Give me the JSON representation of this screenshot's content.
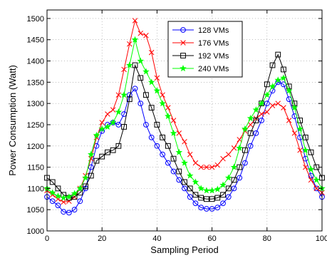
{
  "chart_data": {
    "type": "line",
    "title": "",
    "xlabel": "Sampling Period",
    "ylabel": "Power Consumption (Watt)",
    "xlim": [
      0,
      100
    ],
    "ylim": [
      1000,
      1520
    ],
    "xticks": [
      0,
      20,
      40,
      60,
      80,
      100
    ],
    "yticks": [
      1000,
      1050,
      1100,
      1150,
      1200,
      1250,
      1300,
      1350,
      1400,
      1450,
      1500
    ],
    "grid": true,
    "legend_position": "top-right",
    "x": [
      0,
      2,
      4,
      6,
      8,
      10,
      12,
      14,
      16,
      18,
      20,
      22,
      24,
      26,
      28,
      30,
      32,
      34,
      36,
      38,
      40,
      42,
      44,
      46,
      48,
      50,
      52,
      54,
      56,
      58,
      60,
      62,
      64,
      66,
      68,
      70,
      72,
      74,
      76,
      78,
      80,
      82,
      84,
      86,
      88,
      90,
      92,
      94,
      96,
      98,
      100
    ],
    "series": [
      {
        "name": "128 VMs",
        "color": "#0000ff",
        "marker": "circle",
        "values": [
          1080,
          1070,
          1060,
          1045,
          1043,
          1050,
          1070,
          1100,
          1150,
          1200,
          1235,
          1250,
          1255,
          1250,
          1275,
          1320,
          1335,
          1300,
          1250,
          1220,
          1200,
          1180,
          1160,
          1140,
          1120,
          1100,
          1080,
          1065,
          1055,
          1052,
          1052,
          1055,
          1065,
          1080,
          1100,
          1125,
          1160,
          1200,
          1230,
          1260,
          1300,
          1330,
          1350,
          1345,
          1310,
          1270,
          1220,
          1170,
          1130,
          1100,
          1080
        ]
      },
      {
        "name": "176 VMs",
        "color": "#ff0000",
        "marker": "x",
        "values": [
          1095,
          1085,
          1075,
          1068,
          1070,
          1080,
          1100,
          1130,
          1170,
          1220,
          1255,
          1275,
          1285,
          1320,
          1380,
          1440,
          1495,
          1465,
          1460,
          1420,
          1360,
          1320,
          1290,
          1260,
          1230,
          1210,
          1180,
          1160,
          1150,
          1150,
          1150,
          1155,
          1170,
          1180,
          1195,
          1215,
          1235,
          1250,
          1265,
          1275,
          1280,
          1295,
          1300,
          1290,
          1260,
          1230,
          1190,
          1150,
          1120,
          1100,
          1090
        ]
      },
      {
        "name": "192 VMs",
        "color": "#000000",
        "marker": "square",
        "values": [
          1125,
          1115,
          1100,
          1085,
          1078,
          1080,
          1090,
          1105,
          1130,
          1165,
          1175,
          1185,
          1190,
          1200,
          1245,
          1310,
          1390,
          1360,
          1320,
          1290,
          1250,
          1220,
          1200,
          1170,
          1140,
          1115,
          1100,
          1085,
          1078,
          1075,
          1075,
          1078,
          1085,
          1100,
          1120,
          1150,
          1190,
          1230,
          1260,
          1300,
          1345,
          1390,
          1415,
          1380,
          1340,
          1300,
          1260,
          1220,
          1185,
          1150,
          1125
        ]
      },
      {
        "name": "240 VMs",
        "color": "#00ff00",
        "marker": "star",
        "values": [
          1100,
          1090,
          1082,
          1078,
          1080,
          1088,
          1100,
          1125,
          1180,
          1225,
          1240,
          1245,
          1255,
          1280,
          1320,
          1390,
          1450,
          1400,
          1375,
          1350,
          1330,
          1300,
          1270,
          1230,
          1185,
          1160,
          1130,
          1115,
          1100,
          1095,
          1095,
          1098,
          1108,
          1125,
          1150,
          1195,
          1240,
          1265,
          1285,
          1300,
          1320,
          1340,
          1355,
          1360,
          1330,
          1290,
          1240,
          1190,
          1145,
          1120,
          1100
        ]
      }
    ]
  }
}
